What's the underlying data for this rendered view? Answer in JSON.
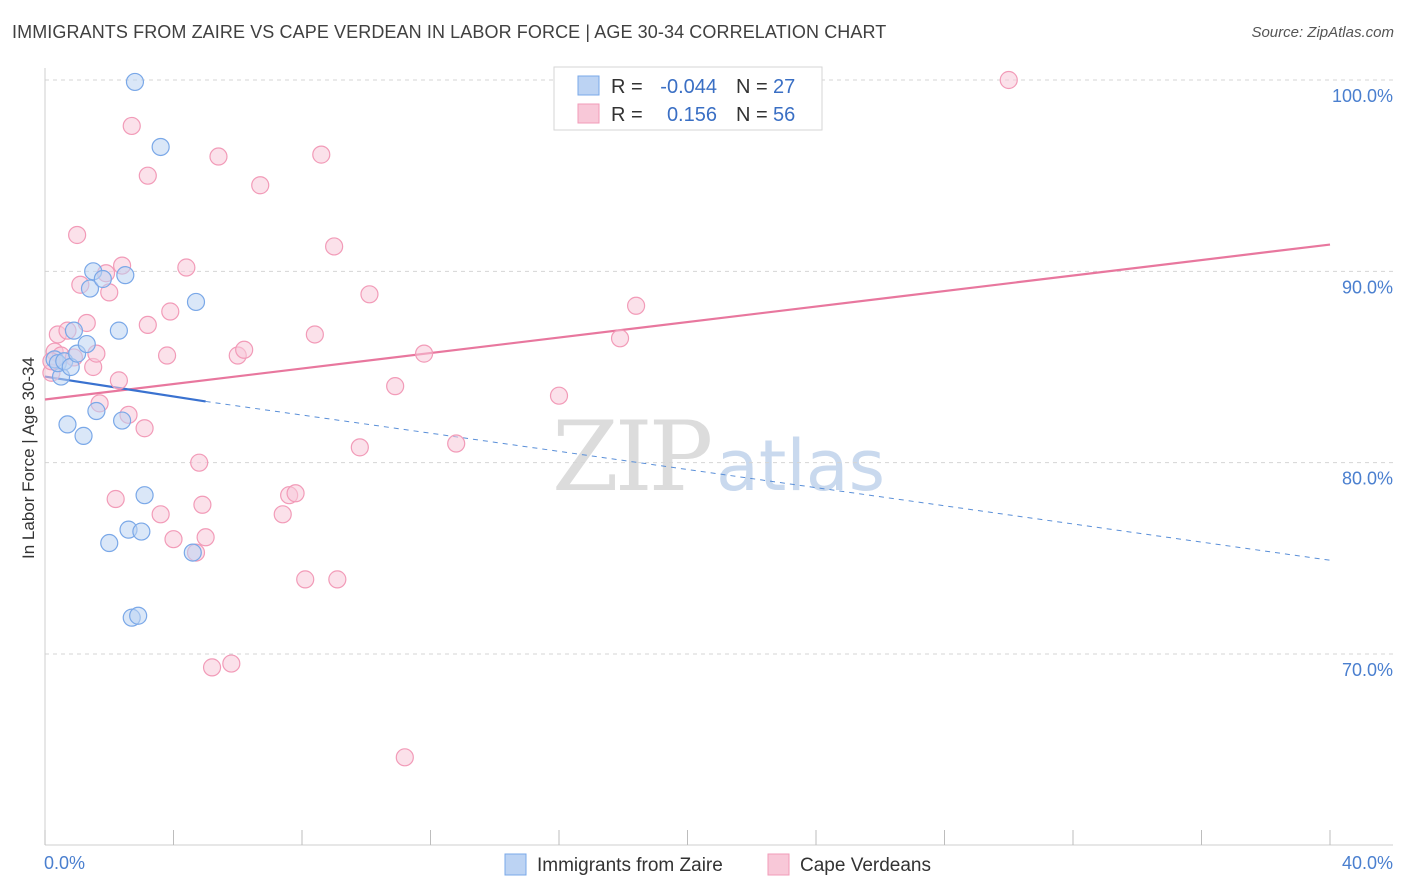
{
  "title": "IMMIGRANTS FROM ZAIRE VS CAPE VERDEAN IN LABOR FORCE | AGE 30-34 CORRELATION CHART",
  "source": "Source: ZipAtlas.com",
  "watermark": {
    "zip": "ZIP",
    "atlas": "atlas"
  },
  "chart_data": {
    "type": "scatter",
    "title": "IMMIGRANTS FROM ZAIRE VS CAPE VERDEAN IN LABOR FORCE | AGE 30-34 CORRELATION CHART",
    "xlabel": "",
    "ylabel": "In Labor Force | Age 30-34",
    "xlim": [
      0,
      40
    ],
    "ylim": [
      60.5,
      101.5
    ],
    "x_tick_labels": [
      "0.0%",
      "40.0%"
    ],
    "y_ticks": [
      70,
      80,
      90,
      100
    ],
    "y_tick_labels": [
      "70.0%",
      "80.0%",
      "90.0%",
      "100.0%"
    ],
    "grid": true,
    "legend_position": "bottom-center",
    "stats": [
      {
        "r_label": "R =",
        "r": "-0.044",
        "n_label": "N =",
        "n": "27"
      },
      {
        "r_label": "R =",
        "r": "0.156",
        "n_label": "N =",
        "n": "56"
      }
    ],
    "series": [
      {
        "name": "Immigrants from Zaire",
        "color": "#7aa8e8",
        "fill": "#bcd3f3",
        "points": [
          [
            0.3,
            85.4
          ],
          [
            0.5,
            84.5
          ],
          [
            0.4,
            85.2
          ],
          [
            0.6,
            85.3
          ],
          [
            0.8,
            85.0
          ],
          [
            0.9,
            86.9
          ],
          [
            1.0,
            85.7
          ],
          [
            0.7,
            82.0
          ],
          [
            1.2,
            81.4
          ],
          [
            1.3,
            86.2
          ],
          [
            1.4,
            89.1
          ],
          [
            1.5,
            90.0
          ],
          [
            1.6,
            82.7
          ],
          [
            1.8,
            89.6
          ],
          [
            2.0,
            75.8
          ],
          [
            2.3,
            86.9
          ],
          [
            2.4,
            82.2
          ],
          [
            2.5,
            89.8
          ],
          [
            2.6,
            76.5
          ],
          [
            2.7,
            71.9
          ],
          [
            2.9,
            72.0
          ],
          [
            3.0,
            76.4
          ],
          [
            3.1,
            78.3
          ],
          [
            2.8,
            99.9
          ],
          [
            3.6,
            96.5
          ],
          [
            4.6,
            75.3
          ],
          [
            4.7,
            88.4
          ]
        ],
        "trend_solid": [
          [
            0.0,
            84.5
          ],
          [
            5.0,
            83.2
          ]
        ],
        "trend_dashed": [
          [
            5.0,
            83.2
          ],
          [
            40.0,
            74.9
          ]
        ]
      },
      {
        "name": "Cape Verdeans",
        "color": "#f29bb8",
        "fill": "#f8c8d8",
        "points": [
          [
            0.2,
            84.7
          ],
          [
            0.3,
            85.8
          ],
          [
            0.4,
            86.7
          ],
          [
            0.5,
            85.6
          ],
          [
            0.7,
            86.9
          ],
          [
            0.9,
            85.5
          ],
          [
            1.0,
            91.9
          ],
          [
            1.1,
            89.3
          ],
          [
            1.3,
            87.3
          ],
          [
            1.5,
            85.0
          ],
          [
            1.6,
            85.7
          ],
          [
            1.7,
            83.1
          ],
          [
            1.9,
            89.9
          ],
          [
            2.0,
            88.9
          ],
          [
            2.2,
            78.1
          ],
          [
            2.3,
            84.3
          ],
          [
            2.4,
            90.3
          ],
          [
            2.6,
            82.5
          ],
          [
            2.7,
            97.6
          ],
          [
            3.1,
            81.8
          ],
          [
            3.2,
            95.0
          ],
          [
            3.2,
            87.2
          ],
          [
            3.6,
            77.3
          ],
          [
            3.8,
            85.6
          ],
          [
            3.9,
            87.9
          ],
          [
            4.0,
            76.0
          ],
          [
            4.4,
            90.2
          ],
          [
            4.7,
            75.3
          ],
          [
            4.8,
            80.0
          ],
          [
            4.9,
            77.8
          ],
          [
            5.0,
            76.1
          ],
          [
            5.2,
            69.3
          ],
          [
            5.4,
            96.0
          ],
          [
            5.8,
            69.5
          ],
          [
            6.0,
            85.6
          ],
          [
            6.2,
            85.9
          ],
          [
            6.7,
            94.5
          ],
          [
            7.4,
            77.3
          ],
          [
            7.6,
            78.3
          ],
          [
            7.8,
            78.4
          ],
          [
            8.1,
            73.9
          ],
          [
            8.4,
            86.7
          ],
          [
            8.6,
            96.1
          ],
          [
            9.0,
            91.3
          ],
          [
            9.1,
            73.9
          ],
          [
            9.8,
            80.8
          ],
          [
            10.1,
            88.8
          ],
          [
            10.9,
            84.0
          ],
          [
            11.2,
            64.6
          ],
          [
            11.8,
            85.7
          ],
          [
            12.8,
            81.0
          ],
          [
            16.0,
            83.5
          ],
          [
            17.9,
            86.5
          ],
          [
            18.4,
            88.2
          ],
          [
            30.0,
            100.0
          ],
          [
            0.2,
            85.3
          ]
        ],
        "trend_solid": [
          [
            0.0,
            83.3
          ],
          [
            40.0,
            91.4
          ]
        ]
      }
    ]
  }
}
